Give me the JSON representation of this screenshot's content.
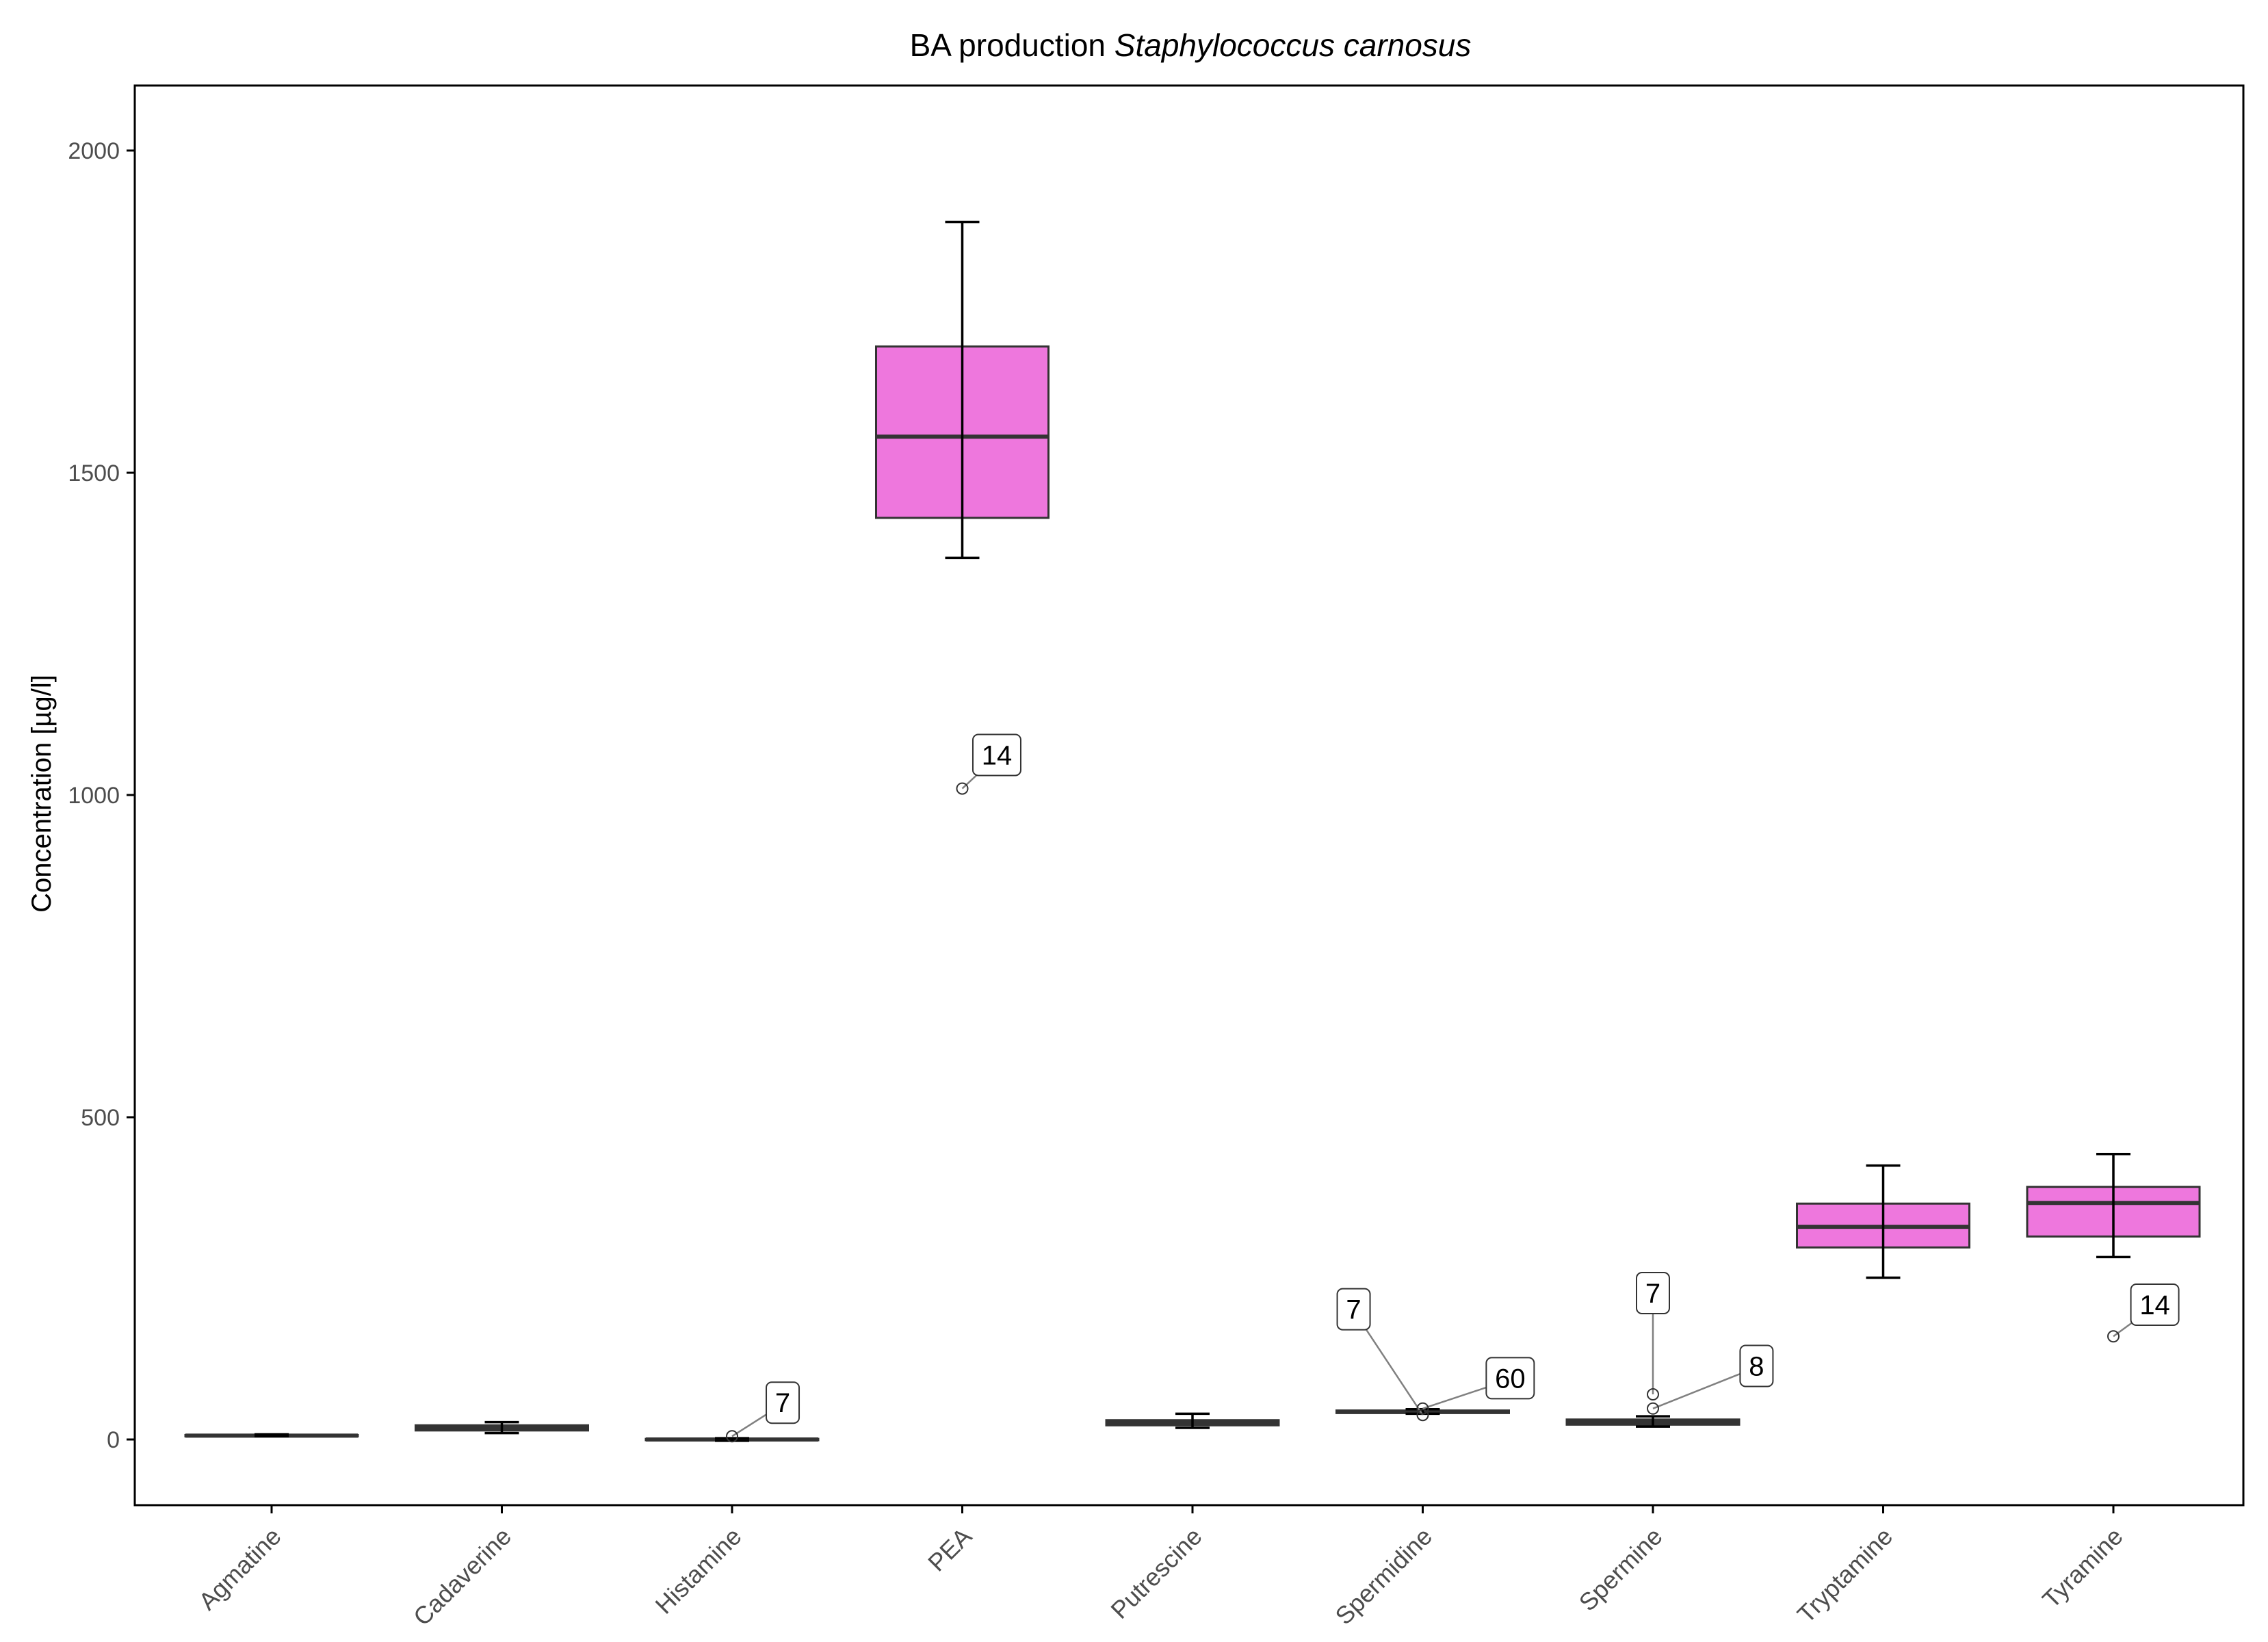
{
  "chart_data": {
    "type": "box",
    "title_prefix": "BA production ",
    "title_species": "Staphylococcus carnosus",
    "xlabel": "",
    "ylabel": "Concentration [µg/l]",
    "ylim": [
      -100,
      2100
    ],
    "yticks": [
      0,
      500,
      1000,
      1500,
      2000
    ],
    "grid": false,
    "categories": [
      "Agmatine",
      "Cadaverine",
      "Histamine",
      "PEA",
      "Putrescine",
      "Spermidine",
      "Spermine",
      "Tryptamine",
      "Tyramine"
    ],
    "boxes": [
      {
        "name": "Agmatine",
        "whisker_low": 5,
        "q1": 5,
        "median": 6,
        "q3": 7,
        "whisker_high": 8,
        "fill": "#ee77dd"
      },
      {
        "name": "Cadaverine",
        "whisker_low": 10,
        "q1": 14,
        "median": 18,
        "q3": 22,
        "whisker_high": 27,
        "fill": "#ee77dd"
      },
      {
        "name": "Histamine",
        "whisker_low": -2,
        "q1": -1,
        "median": 0,
        "q3": 1,
        "whisker_high": 2,
        "fill": "#ee77dd"
      },
      {
        "name": "PEA",
        "whisker_low": 1368,
        "q1": 1430,
        "median": 1556,
        "q3": 1696,
        "whisker_high": 1889,
        "fill": "#ee77dd"
      },
      {
        "name": "Putrescine",
        "whisker_low": 18,
        "q1": 22,
        "median": 26,
        "q3": 30,
        "whisker_high": 40,
        "fill": "#ee77dd"
      },
      {
        "name": "Spermidine",
        "whisker_low": 40,
        "q1": 41,
        "median": 43,
        "q3": 45,
        "whisker_high": 47,
        "fill": "#ee77dd"
      },
      {
        "name": "Spermine",
        "whisker_low": 20,
        "q1": 23,
        "median": 27,
        "q3": 31,
        "whisker_high": 36,
        "fill": "#ee77dd"
      },
      {
        "name": "Tryptamine",
        "whisker_low": 251,
        "q1": 298,
        "median": 330,
        "q3": 366,
        "whisker_high": 425,
        "fill": "#ee77dd"
      },
      {
        "name": "Tyramine",
        "whisker_low": 283,
        "q1": 315,
        "median": 367,
        "q3": 392,
        "whisker_high": 443,
        "fill": "#ee77dd"
      }
    ],
    "outliers": [
      {
        "category": "Histamine",
        "value": 5,
        "label": "7",
        "label_x_offset": 0.22,
        "label_value": 55
      },
      {
        "category": "PEA",
        "value": 1010,
        "label": "14",
        "label_x_offset": 0.15,
        "label_value": 1060
      },
      {
        "category": "Spermidine",
        "value": 38,
        "label": "7",
        "label_x_offset": -0.3,
        "label_value": 200
      },
      {
        "category": "Spermidine",
        "value": 48,
        "label": "60",
        "label_x_offset": 0.38,
        "label_value": 93
      },
      {
        "category": "Spermine",
        "value": 70,
        "label": "7",
        "label_x_offset": 0.0,
        "label_value": 225
      },
      {
        "category": "Spermine",
        "value": 48,
        "label": "8",
        "label_x_offset": 0.45,
        "label_value": 112
      },
      {
        "category": "Tyramine",
        "value": 160,
        "label": "14",
        "label_x_offset": 0.18,
        "label_value": 207
      }
    ],
    "colors": {
      "box_fill": "#ee77dd",
      "box_stroke": "#333333",
      "whisker": "#000000",
      "frame": "#000000",
      "tick_text": "#4d4d4d",
      "leader": "#808080"
    }
  }
}
